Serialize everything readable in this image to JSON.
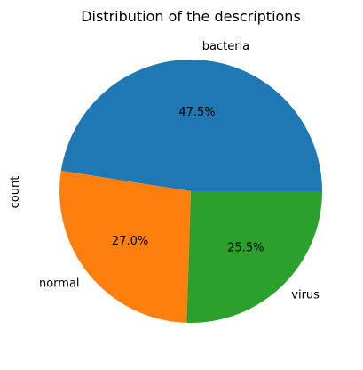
{
  "chart_data": {
    "type": "pie",
    "title": "Distribution of the descriptions",
    "ylabel": "count",
    "categories": [
      "bacteria",
      "normal",
      "virus"
    ],
    "values": [
      47.5,
      27.0,
      25.5
    ],
    "percent_labels": [
      "47.5%",
      "27.0%",
      "25.5%"
    ],
    "colors": [
      "#1f77b4",
      "#ff7f0e",
      "#2ca02c"
    ],
    "start_angle_deg": 0,
    "direction": "counterclockwise",
    "legend": "none"
  }
}
